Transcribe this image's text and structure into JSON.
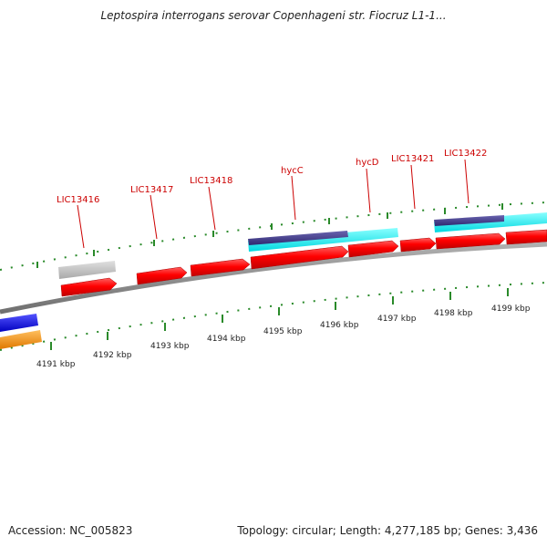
{
  "title": "Leptospira interrogans serovar Copenhageni str. Fiocruz L1-1...",
  "accession": "Accession: NC_005823",
  "summary": "Topology: circular; Length: 4,277,185 bp; Genes: 3,436",
  "gene_labels": [
    {
      "id": "lic13416",
      "text": "LIC13416"
    },
    {
      "id": "lic13417",
      "text": "LIC13417"
    },
    {
      "id": "lic13418",
      "text": "LIC13418"
    },
    {
      "id": "hycc",
      "text": "hycC"
    },
    {
      "id": "hycd",
      "text": "hycD"
    },
    {
      "id": "lic13421",
      "text": "LIC13421"
    },
    {
      "id": "lic13422",
      "text": "LIC13422"
    }
  ],
  "scale_labels": [
    "4191 kbp",
    "4192 kbp",
    "4193 kbp",
    "4194 kbp",
    "4195 kbp",
    "4196 kbp",
    "4197 kbp",
    "4198 kbp",
    "4199 kbp"
  ],
  "colors": {
    "cds": "#ff0000",
    "gene_outline": "#cc0000",
    "pseudo": "#c0c0c0",
    "cyan_feature": "#22ffff",
    "navy_feature": "#4a4090",
    "blue_feature": "#1a1aee",
    "orange_feature": "#ff9900",
    "backbone": "#888888",
    "tick": "#2a8a2a",
    "label": "#cc0000"
  }
}
